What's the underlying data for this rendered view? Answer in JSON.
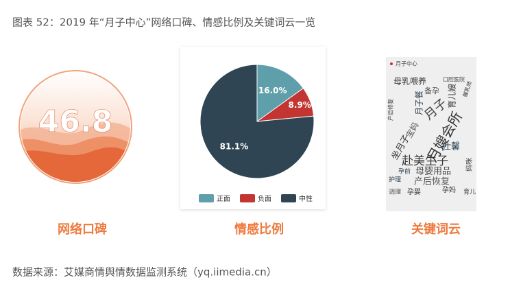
{
  "title": "图表 52：2019 年“月子中心”网络口碑、情感比例及关键词云一览",
  "gauge": {
    "value": "46.8",
    "caption": "网络口碑"
  },
  "chart_data": {
    "type": "pie",
    "title": "情感比例",
    "categories": [
      "正面",
      "负面",
      "中性"
    ],
    "values": [
      16.0,
      8.9,
      81.1
    ],
    "value_labels": [
      "16.0%",
      "8.9%",
      "81.1%"
    ],
    "colors": [
      "#5e9fab",
      "#c23531",
      "#2f4554"
    ]
  },
  "wordcloud": {
    "legend": "月子中心",
    "caption": "关键词云",
    "words": [
      "母乳喂养",
      "口腔医院",
      "备孕",
      "月子餐",
      "育儿嫂",
      "月嫂会所",
      "月子",
      "宝妈",
      "仕馨",
      "赴美生子",
      "坐月子",
      "母婴用品",
      "产后恢复",
      "孕前",
      "孕婴",
      "孕妈",
      "育儿",
      "调理",
      "护理",
      "产后修复",
      "催乳师",
      "妈咪"
    ]
  },
  "source": "数据来源：艾媒商情舆情数据监测系统（yq.iimedia.cn）"
}
